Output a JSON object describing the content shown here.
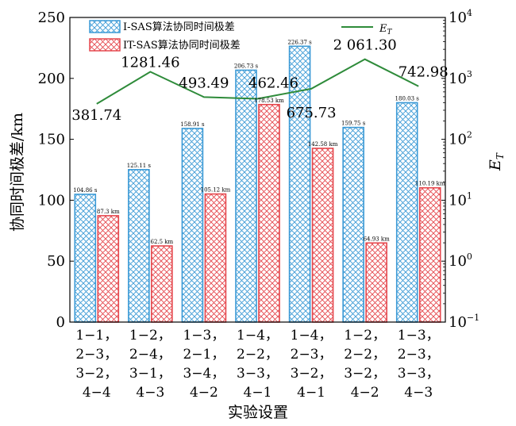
{
  "chart_data": {
    "type": "bar",
    "ylabel": "协同时间极差/km",
    "xlabel": "实验设置",
    "y2label": "E_T",
    "ylim": [
      0,
      250
    ],
    "y_ticks": [
      0,
      50,
      100,
      150,
      200,
      250
    ],
    "y2_scale": "log",
    "y2lim": [
      0.1,
      10000
    ],
    "y2_ticks": [
      {
        "value": 0.1,
        "base": "10",
        "exp": "−1"
      },
      {
        "value": 1,
        "base": "10",
        "exp": "0"
      },
      {
        "value": 10,
        "base": "10",
        "exp": "1"
      },
      {
        "value": 100,
        "base": "10",
        "exp": "2"
      },
      {
        "value": 1000,
        "base": "10",
        "exp": "3"
      },
      {
        "value": 10000,
        "base": "10",
        "exp": "4"
      }
    ],
    "categories": [
      [
        "1−1，",
        "2−3，",
        "3−2，",
        "4−4"
      ],
      [
        "1−2，",
        "2−4，",
        "3−1，",
        "4−3"
      ],
      [
        "1−3，",
        "2−1，",
        "3−4，",
        "4−2"
      ],
      [
        "1−4，",
        "2−2，",
        "3−3，",
        "4−1"
      ],
      [
        "1−4，",
        "2−3，",
        "3−2，",
        "4−1"
      ],
      [
        "1−2，",
        "2−2，",
        "3−2，",
        "4−2"
      ],
      [
        "1−3，",
        "2−3，",
        "3−3，",
        "4−3"
      ]
    ],
    "series": [
      {
        "name": "I-SAS算法协同时间极差",
        "color": "#3b9ad6",
        "values": [
          104.86,
          125.11,
          158.91,
          206.73,
          226.37,
          159.75,
          180.03
        ],
        "labels": [
          "104.86 s",
          "125.11 s",
          "158.91 s",
          "206.73 s",
          "226.37 s",
          "159.75 s",
          "180.03 s"
        ]
      },
      {
        "name": "IT-SAS算法协同时间极差",
        "color": "#e5474d",
        "values": [
          87.3,
          62.5,
          105.12,
          178.53,
          142.58,
          64.93,
          110.19
        ],
        "labels": [
          "87.3 km",
          "62.5 km",
          "105.12 km",
          "178.53 km",
          "142.58 km",
          "64.93 km",
          "110.19 km"
        ]
      }
    ],
    "line": {
      "name": "E_T",
      "color": "#2e8b3a",
      "values": [
        381.74,
        1281.46,
        493.49,
        462.46,
        675.73,
        2061.3,
        742.98
      ],
      "labels": [
        "381.74",
        "1281.46",
        "493.49",
        "462.46",
        "675.73",
        "2 061.30",
        "742.98"
      ]
    },
    "legend_position": "top"
  }
}
